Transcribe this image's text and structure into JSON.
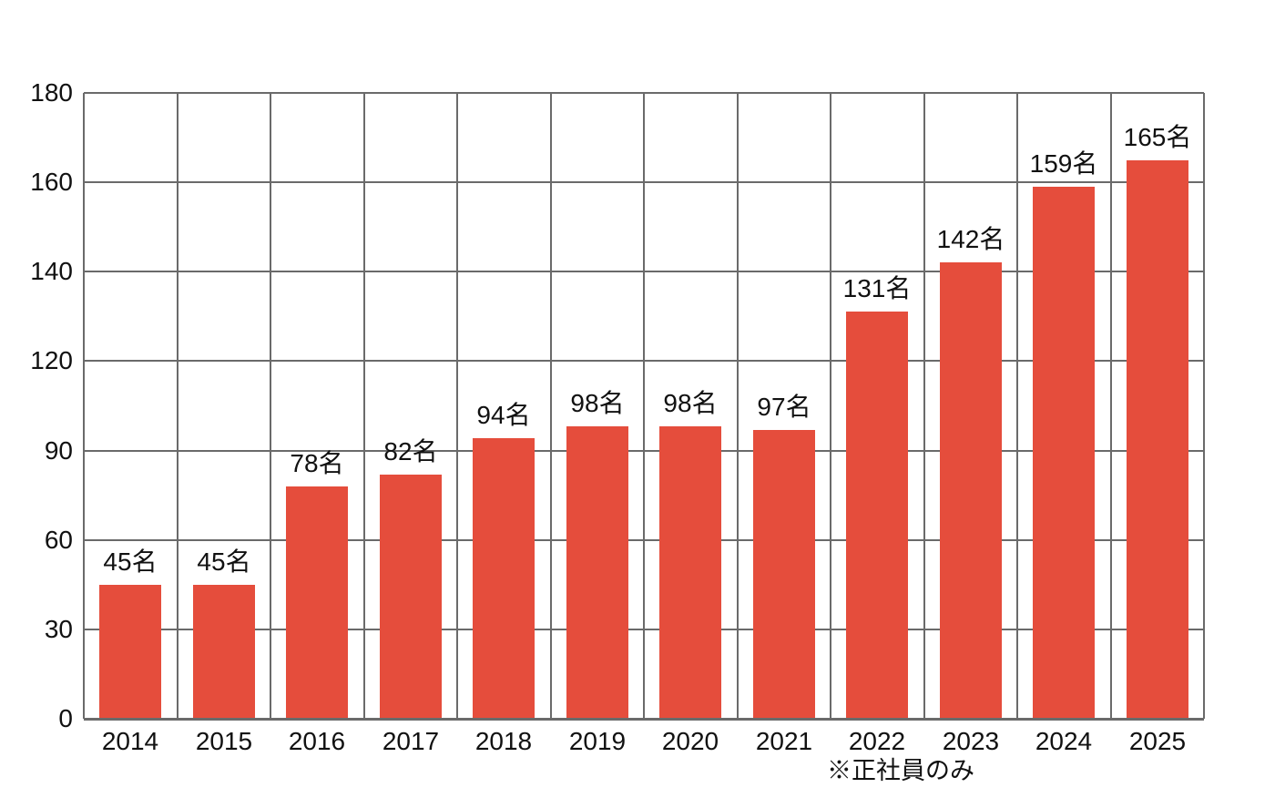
{
  "chart_data": {
    "type": "bar",
    "title": "",
    "categories": [
      "2014",
      "2015",
      "2016",
      "2017",
      "2018",
      "2019",
      "2020",
      "2021",
      "2022",
      "2023",
      "2024",
      "2025"
    ],
    "values": [
      45,
      45,
      78,
      82,
      94,
      98,
      98,
      97,
      131,
      142,
      159,
      165
    ],
    "bar_labels": [
      "45名",
      "45名",
      "78名",
      "82名",
      "94名",
      "98名",
      "98名",
      "97名",
      "131名",
      "142名",
      "159名",
      "165名"
    ],
    "unit": "名",
    "y_ticks": [
      0,
      30,
      60,
      90,
      120,
      140,
      160,
      180
    ],
    "ylim": [
      0,
      180
    ],
    "xlabel": "",
    "ylabel": "",
    "grid": true,
    "legend": "none",
    "annotation": "※正社員のみ",
    "colors": {
      "bar": "#e54d3c",
      "grid": "#6a6a6a",
      "text": "#111111",
      "background": "#ffffff"
    }
  }
}
